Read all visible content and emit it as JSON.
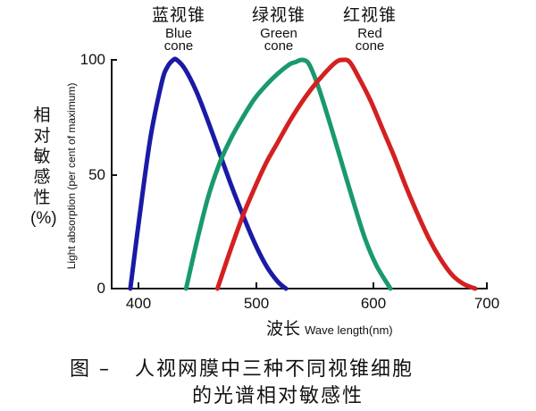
{
  "chart_data": {
    "type": "line",
    "title": "图 – 人视网膜中三种不同视锥细胞的光谱相对敏感性",
    "xlabel": "波长 Wave length(nm)",
    "ylabel": "相对敏感性(%) Light absorption (per cent of maximum)",
    "xlim": [
      380,
      705
    ],
    "ylim": [
      0,
      100
    ],
    "xticks": [
      400,
      500,
      600,
      700
    ],
    "yticks": [
      0,
      50,
      100
    ],
    "grid": false,
    "legend_position": "top (labels above peaks)",
    "series": [
      {
        "name": "蓝视锥 Blue cone",
        "color": "#1a1aa6",
        "x": [
          393,
          400,
          410,
          420,
          425,
          430,
          433,
          440,
          450,
          460,
          470,
          480,
          490,
          500,
          510,
          520,
          527
        ],
        "values": [
          0,
          28,
          65,
          90,
          97,
          100,
          100,
          96,
          86,
          73,
          59,
          45,
          32,
          20,
          10,
          3,
          0
        ]
      },
      {
        "name": "绿视锥 Green cone",
        "color": "#1a9a6c",
        "x": [
          441,
          450,
          460,
          470,
          480,
          490,
          500,
          510,
          520,
          530,
          535,
          541,
          547,
          555,
          565,
          575,
          585,
          595,
          605,
          617
        ],
        "values": [
          0,
          20,
          40,
          55,
          66,
          75,
          83,
          89,
          94,
          98,
          99,
          100,
          98,
          88,
          72,
          55,
          38,
          22,
          10,
          0
        ]
      },
      {
        "name": "红视锥 Red cone",
        "color": "#d42020",
        "x": [
          468,
          480,
          490,
          500,
          510,
          520,
          530,
          540,
          550,
          560,
          570,
          576,
          582,
          590,
          600,
          610,
          620,
          630,
          640,
          650,
          660,
          670,
          680,
          690
        ],
        "values": [
          0,
          18,
          32,
          44,
          55,
          64,
          73,
          81,
          88,
          94,
          99,
          100,
          99,
          92,
          82,
          70,
          58,
          45,
          33,
          22,
          13,
          6,
          2,
          0
        ]
      }
    ]
  },
  "labels": {
    "cones": [
      {
        "zh": "蓝视锥",
        "en1": "Blue",
        "en2": "cone"
      },
      {
        "zh": "绿视锥",
        "en1": "Green",
        "en2": "cone"
      },
      {
        "zh": "红视锥",
        "en1": "Red",
        "en2": "cone"
      }
    ],
    "y_axis_zh": "相对敏感性(%)",
    "y_axis_zh_chars": [
      "相",
      "对",
      "敏",
      "感",
      "性",
      "(%)"
    ],
    "y_axis_en": "Light absorption (per cent of maximum)",
    "y_ticks": [
      "100",
      "50",
      "0"
    ],
    "x_ticks": [
      "400",
      "500",
      "600",
      "700"
    ],
    "x_axis_zh": "波长",
    "x_axis_en": "Wave length(nm)",
    "caption_line1": "图 –   人视网膜中三种不同视锥细胞",
    "caption_line2": "的光谱相对敏感性"
  }
}
